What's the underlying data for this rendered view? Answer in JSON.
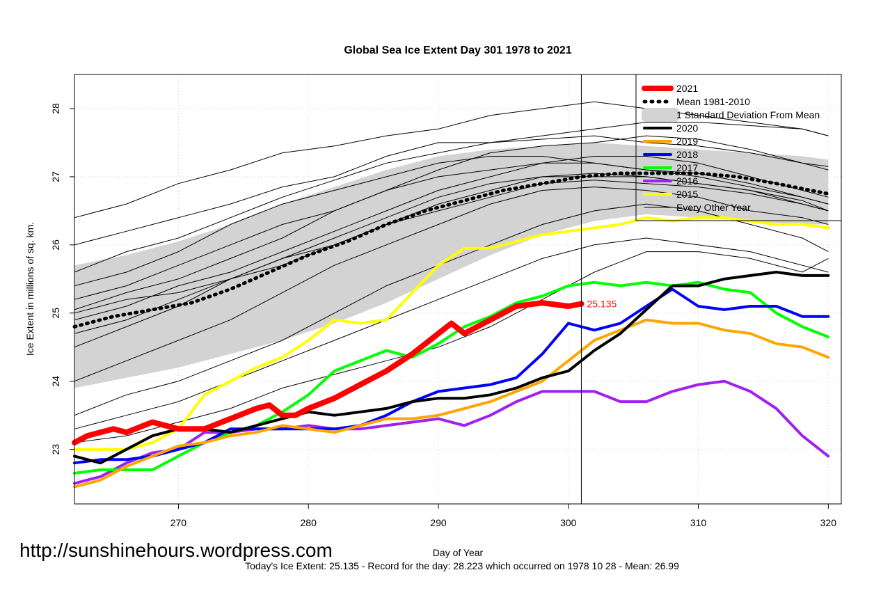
{
  "chart_data": {
    "type": "line",
    "title": "Global Sea Ice Extent Day 301 1978 to 2021",
    "xlabel": "Day of Year",
    "ylabel": "Ice Extent in millions of sq. km.",
    "xlim": [
      262,
      321
    ],
    "ylim": [
      22.2,
      28.5
    ],
    "x_ticks": [
      270,
      280,
      290,
      300,
      310,
      320
    ],
    "y_ticks": [
      23,
      24,
      25,
      26,
      27,
      28
    ],
    "grid": true,
    "legend_position": "top-right",
    "vline_day": 301,
    "current_value_label": "25.135",
    "legend": [
      {
        "label": "2021",
        "color": "#ff0000",
        "style": "thick"
      },
      {
        "label": "Mean 1981-2010",
        "color": "#000000",
        "style": "dotted"
      },
      {
        "label": "1 Standard Deviation From Mean",
        "color": "#d3d3d3",
        "style": "band"
      },
      {
        "label": "2020",
        "color": "#000000",
        "style": "solid"
      },
      {
        "label": "2019",
        "color": "#ffa500",
        "style": "solid"
      },
      {
        "label": "2018",
        "color": "#0000ff",
        "style": "solid"
      },
      {
        "label": "2017",
        "color": "#00ff00",
        "style": "solid"
      },
      {
        "label": "2016",
        "color": "#a020f0",
        "style": "solid"
      },
      {
        "label": "2015",
        "color": "#ffff00",
        "style": "solid"
      },
      {
        "label": "Every Other Year",
        "color": "#000000",
        "style": "thin"
      }
    ],
    "band": {
      "x": [
        262,
        266,
        270,
        274,
        278,
        282,
        286,
        290,
        294,
        298,
        302,
        306,
        310,
        314,
        318,
        320
      ],
      "upper": [
        25.7,
        25.85,
        26.05,
        26.3,
        26.6,
        26.85,
        27.1,
        27.3,
        27.4,
        27.45,
        27.5,
        27.45,
        27.4,
        27.35,
        27.3,
        27.25
      ],
      "lower": [
        23.9,
        24.05,
        24.2,
        24.4,
        24.6,
        24.85,
        25.15,
        25.5,
        25.85,
        26.15,
        26.35,
        26.45,
        26.4,
        26.35,
        26.3,
        26.3
      ]
    },
    "series": [
      {
        "name": "Mean 1981-2010",
        "color": "#000000",
        "width": 5,
        "dash": "2,7",
        "x": [
          262,
          265,
          268,
          271,
          274,
          277,
          280,
          283,
          286,
          289,
          292,
          295,
          298,
          301,
          304,
          307,
          310,
          313,
          316,
          320
        ],
        "values": [
          24.8,
          24.95,
          25.05,
          25.15,
          25.35,
          25.6,
          25.85,
          26.05,
          26.3,
          26.5,
          26.65,
          26.8,
          26.9,
          27.0,
          27.05,
          27.05,
          27.05,
          27.0,
          26.9,
          26.75
        ]
      },
      {
        "name": "2015",
        "color": "#ffff00",
        "width": 4,
        "x": [
          262,
          264,
          266,
          268,
          270,
          272,
          274,
          276,
          278,
          280,
          282,
          284,
          286,
          288,
          290,
          292,
          294,
          296,
          298,
          300,
          302,
          304,
          306,
          308,
          310,
          312,
          314,
          316,
          318,
          320
        ],
        "values": [
          23.0,
          23.0,
          23.0,
          23.1,
          23.3,
          23.8,
          24.0,
          24.2,
          24.35,
          24.6,
          24.9,
          24.85,
          24.9,
          25.3,
          25.7,
          25.95,
          25.95,
          26.05,
          26.15,
          26.2,
          26.25,
          26.3,
          26.4,
          26.35,
          26.4,
          26.4,
          26.35,
          26.3,
          26.3,
          26.25
        ]
      },
      {
        "name": "2016",
        "color": "#a020f0",
        "width": 4,
        "x": [
          262,
          264,
          266,
          268,
          270,
          272,
          274,
          276,
          278,
          280,
          282,
          284,
          286,
          288,
          290,
          292,
          294,
          296,
          298,
          300,
          302,
          304,
          306,
          308,
          310,
          312,
          314,
          316,
          318,
          320
        ],
        "values": [
          22.5,
          22.6,
          22.8,
          22.95,
          23.0,
          23.25,
          23.25,
          23.3,
          23.3,
          23.35,
          23.3,
          23.3,
          23.35,
          23.4,
          23.45,
          23.35,
          23.5,
          23.7,
          23.85,
          23.85,
          23.85,
          23.7,
          23.7,
          23.85,
          23.95,
          24.0,
          23.85,
          23.6,
          23.2,
          22.9
        ]
      },
      {
        "name": "2017",
        "color": "#00ff00",
        "width": 4,
        "x": [
          262,
          264,
          266,
          268,
          270,
          272,
          274,
          276,
          278,
          280,
          282,
          284,
          286,
          288,
          290,
          292,
          294,
          296,
          298,
          300,
          302,
          304,
          306,
          308,
          310,
          312,
          314,
          316,
          318,
          320
        ],
        "values": [
          22.65,
          22.7,
          22.7,
          22.7,
          22.9,
          23.1,
          23.25,
          23.35,
          23.55,
          23.8,
          24.15,
          24.3,
          24.45,
          24.35,
          24.55,
          24.8,
          24.95,
          25.15,
          25.25,
          25.4,
          25.45,
          25.4,
          25.45,
          25.4,
          25.45,
          25.35,
          25.3,
          25.0,
          24.8,
          24.65
        ]
      },
      {
        "name": "2018",
        "color": "#0000ff",
        "width": 4,
        "x": [
          262,
          264,
          266,
          268,
          270,
          272,
          274,
          276,
          278,
          280,
          282,
          284,
          286,
          288,
          290,
          292,
          294,
          296,
          298,
          300,
          302,
          304,
          306,
          308,
          310,
          312,
          314,
          316,
          318,
          320
        ],
        "values": [
          22.8,
          22.85,
          22.85,
          22.9,
          23.0,
          23.1,
          23.3,
          23.3,
          23.3,
          23.3,
          23.3,
          23.35,
          23.5,
          23.7,
          23.85,
          23.9,
          23.95,
          24.05,
          24.4,
          24.85,
          24.75,
          24.85,
          25.1,
          25.35,
          25.1,
          25.05,
          25.1,
          25.1,
          24.95,
          24.95
        ]
      },
      {
        "name": "2019",
        "color": "#ffa500",
        "width": 4,
        "x": [
          262,
          264,
          266,
          268,
          270,
          272,
          274,
          276,
          278,
          280,
          282,
          284,
          286,
          288,
          290,
          292,
          294,
          296,
          298,
          300,
          302,
          304,
          306,
          308,
          310,
          312,
          314,
          316,
          318,
          320
        ],
        "values": [
          22.45,
          22.55,
          22.75,
          22.9,
          23.05,
          23.1,
          23.2,
          23.25,
          23.35,
          23.3,
          23.25,
          23.35,
          23.45,
          23.45,
          23.5,
          23.6,
          23.7,
          23.85,
          24.0,
          24.3,
          24.6,
          24.75,
          24.9,
          24.85,
          24.85,
          24.75,
          24.7,
          24.55,
          24.5,
          24.35
        ]
      },
      {
        "name": "2020",
        "color": "#000000",
        "width": 4,
        "x": [
          262,
          264,
          266,
          268,
          270,
          272,
          274,
          276,
          278,
          280,
          282,
          284,
          286,
          288,
          290,
          292,
          294,
          296,
          298,
          300,
          302,
          304,
          306,
          308,
          310,
          312,
          314,
          316,
          318,
          320
        ],
        "values": [
          22.9,
          22.8,
          23.0,
          23.2,
          23.3,
          23.3,
          23.25,
          23.35,
          23.45,
          23.55,
          23.5,
          23.55,
          23.6,
          23.7,
          23.75,
          23.75,
          23.8,
          23.9,
          24.05,
          24.15,
          24.45,
          24.7,
          25.05,
          25.4,
          25.4,
          25.5,
          25.55,
          25.6,
          25.55,
          25.55
        ]
      },
      {
        "name": "2021",
        "color": "#ff0000",
        "width": 8,
        "x": [
          262,
          263,
          265,
          266,
          268,
          270,
          272,
          274,
          276,
          277,
          278,
          279,
          280,
          282,
          284,
          286,
          288,
          290,
          291,
          292,
          294,
          296,
          298,
          300,
          301
        ],
        "values": [
          23.1,
          23.2,
          23.3,
          23.25,
          23.4,
          23.3,
          23.3,
          23.45,
          23.6,
          23.65,
          23.5,
          23.5,
          23.6,
          23.75,
          23.95,
          24.15,
          24.4,
          24.7,
          24.85,
          24.7,
          24.9,
          25.1,
          25.15,
          25.1,
          25.135
        ]
      }
    ],
    "background_series": [
      {
        "x": [
          262,
          266,
          270,
          274,
          278,
          282,
          286,
          290,
          294,
          298,
          302,
          306,
          310,
          314,
          318,
          320
        ],
        "values": [
          25.05,
          25.3,
          25.5,
          25.8,
          26.1,
          26.5,
          26.8,
          27.1,
          27.35,
          27.45,
          27.5,
          27.6,
          27.55,
          27.4,
          27.2,
          27.1
        ]
      },
      {
        "x": [
          262,
          266,
          270,
          274,
          278,
          282,
          286,
          290,
          294,
          298,
          302,
          306,
          310,
          314,
          318,
          320
        ],
        "values": [
          26.4,
          26.6,
          26.9,
          27.1,
          27.35,
          27.45,
          27.6,
          27.7,
          27.9,
          28.0,
          28.1,
          28.0,
          27.9,
          27.8,
          27.7,
          27.6
        ]
      },
      {
        "x": [
          262,
          266,
          270,
          274,
          278,
          282,
          286,
          290,
          294,
          298,
          302,
          306,
          310,
          314,
          318,
          320
        ],
        "values": [
          26.0,
          26.2,
          26.4,
          26.6,
          26.85,
          27.0,
          27.3,
          27.5,
          27.5,
          27.6,
          27.7,
          27.8,
          27.8,
          27.75,
          27.7,
          27.6
        ]
      },
      {
        "x": [
          262,
          266,
          270,
          274,
          278,
          282,
          286,
          290,
          294,
          298,
          302,
          306,
          310,
          314,
          318,
          320
        ],
        "values": [
          25.2,
          25.4,
          25.7,
          26.0,
          26.3,
          26.5,
          26.8,
          27.0,
          27.1,
          27.2,
          27.2,
          27.1,
          27.05,
          26.9,
          26.7,
          26.6
        ]
      },
      {
        "x": [
          262,
          266,
          270,
          274,
          278,
          282,
          286,
          290,
          294,
          298,
          302,
          306,
          310,
          314,
          318,
          320
        ],
        "values": [
          24.5,
          24.8,
          25.1,
          25.5,
          25.8,
          26.1,
          26.4,
          26.7,
          26.9,
          27.0,
          27.05,
          27.0,
          26.9,
          26.8,
          26.6,
          26.5
        ]
      },
      {
        "x": [
          262,
          266,
          270,
          274,
          278,
          282,
          286,
          290,
          294,
          298,
          302,
          306,
          310,
          314,
          318,
          320
        ],
        "values": [
          25.6,
          25.9,
          26.1,
          26.4,
          26.7,
          26.95,
          27.2,
          27.35,
          27.5,
          27.55,
          27.6,
          27.5,
          27.45,
          27.35,
          27.2,
          27.15
        ]
      },
      {
        "x": [
          262,
          266,
          270,
          274,
          278,
          282,
          286,
          290,
          294,
          298,
          302,
          306,
          310,
          314,
          318,
          320
        ],
        "values": [
          24.0,
          24.3,
          24.6,
          24.9,
          25.3,
          25.7,
          26.0,
          26.3,
          26.6,
          26.8,
          26.85,
          26.8,
          26.7,
          26.5,
          26.4,
          26.3
        ]
      },
      {
        "x": [
          262,
          266,
          270,
          274,
          278,
          282,
          286,
          290,
          294,
          298,
          302,
          306,
          310,
          314,
          318,
          320
        ],
        "values": [
          23.5,
          23.8,
          24.0,
          24.3,
          24.6,
          25.0,
          25.4,
          25.7,
          26.0,
          26.3,
          26.5,
          26.6,
          26.5,
          26.3,
          26.1,
          25.9
        ]
      },
      {
        "x": [
          262,
          266,
          270,
          274,
          278,
          282,
          286,
          290,
          294,
          298,
          302,
          306,
          310,
          314,
          318,
          320
        ],
        "values": [
          23.3,
          23.5,
          23.7,
          24.0,
          24.3,
          24.6,
          24.9,
          25.2,
          25.5,
          25.8,
          26.0,
          26.1,
          26.0,
          25.9,
          25.7,
          25.6
        ]
      },
      {
        "x": [
          262,
          266,
          270,
          274,
          278,
          282,
          286,
          290,
          294,
          298,
          302,
          306,
          310,
          314,
          318,
          320
        ],
        "values": [
          23.1,
          23.2,
          23.4,
          23.6,
          23.9,
          24.1,
          24.3,
          24.5,
          24.8,
          25.2,
          25.6,
          25.9,
          25.9,
          25.8,
          25.6,
          25.8
        ]
      },
      {
        "x": [
          262,
          266,
          270,
          274,
          278,
          282,
          286,
          290,
          294,
          298,
          302,
          306,
          310,
          314,
          318,
          320
        ],
        "values": [
          25.4,
          25.6,
          25.9,
          26.3,
          26.6,
          26.8,
          27.0,
          27.2,
          27.3,
          27.3,
          27.2,
          27.1,
          27.0,
          26.85,
          26.7,
          26.6
        ]
      },
      {
        "x": [
          262,
          266,
          270,
          274,
          278,
          282,
          286,
          290,
          294,
          298,
          302,
          306,
          310,
          314,
          318,
          320
        ],
        "values": [
          24.9,
          25.1,
          25.4,
          25.6,
          25.9,
          26.2,
          26.5,
          26.8,
          27.0,
          27.2,
          27.3,
          27.3,
          27.2,
          27.0,
          26.8,
          26.7
        ]
      },
      {
        "x": [
          262,
          266,
          270,
          274,
          278,
          282,
          286,
          290,
          294,
          298,
          302,
          306,
          310,
          314,
          318,
          320
        ],
        "values": [
          25.0,
          25.2,
          25.3,
          25.5,
          25.8,
          26.0,
          26.3,
          26.5,
          26.7,
          26.9,
          26.95,
          26.9,
          26.85,
          26.75,
          26.6,
          26.5
        ]
      },
      {
        "x": [
          262,
          266,
          270,
          274,
          278,
          282,
          286,
          290,
          294,
          298,
          302,
          306,
          310,
          314,
          318,
          320
        ],
        "values": [
          24.7,
          24.9,
          25.2,
          25.5,
          25.7,
          26.0,
          26.3,
          26.6,
          26.8,
          27.0,
          27.0,
          27.0,
          26.9,
          26.8,
          26.65,
          26.5
        ]
      }
    ]
  },
  "footer": {
    "url": "http://sunshinehours.wordpress.com",
    "summary": "Today's Ice Extent: 25.135  - Record for the day: 28.223 which occurred on 1978 10 28  - Mean: 26.99"
  }
}
